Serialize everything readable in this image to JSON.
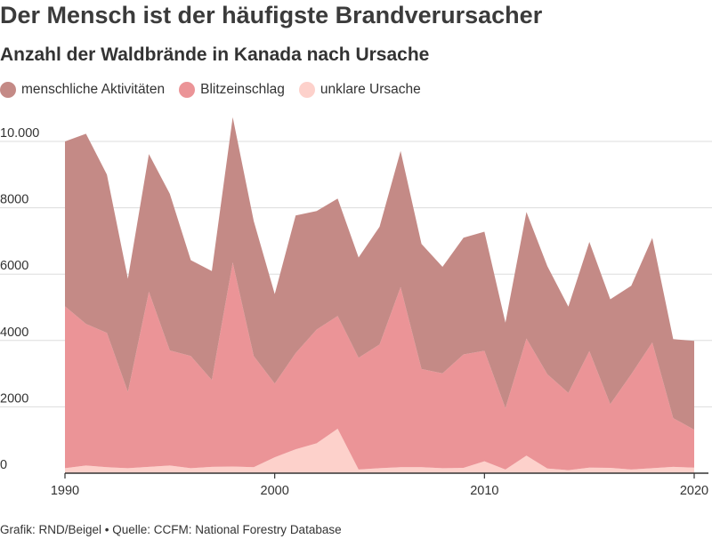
{
  "title": "Der Mensch ist der häufigste Brandverursacher",
  "subtitle": "Anzahl der Waldbrände in Kanada nach Ursache",
  "footer": "Grafik: RND/Beigel • Quelle: CCFM: National Forestry Database",
  "colors": {
    "menschlich": "#c48a86",
    "blitz": "#eb9497",
    "unklar": "#fdd1cb",
    "grid": "#dddddd",
    "axis": "#333333"
  },
  "chart_data": {
    "type": "area",
    "stacked": true,
    "title": "Der Mensch ist der häufigste Brandverursacher",
    "subtitle": "Anzahl der Waldbrände in Kanada nach Ursache",
    "xlabel": "",
    "ylabel": "",
    "ylim": [
      0,
      10000
    ],
    "xlim": [
      1990,
      2020
    ],
    "grid": true,
    "legend_position": "top-left",
    "y_ticks": [
      {
        "value": 0,
        "label": "0"
      },
      {
        "value": 2000,
        "label": "2000"
      },
      {
        "value": 4000,
        "label": "4000"
      },
      {
        "value": 6000,
        "label": "6000"
      },
      {
        "value": 8000,
        "label": "8000"
      },
      {
        "value": 10000,
        "label": "10.000"
      }
    ],
    "x_ticks": [
      1990,
      2000,
      2010,
      2020
    ],
    "x": [
      1990,
      1991,
      1992,
      1993,
      1994,
      1995,
      1996,
      1997,
      1998,
      1999,
      2000,
      2001,
      2002,
      2003,
      2004,
      2005,
      2006,
      2007,
      2008,
      2009,
      2010,
      2011,
      2012,
      2013,
      2014,
      2015,
      2016,
      2017,
      2018,
      2019,
      2020
    ],
    "series": [
      {
        "name": "unklare Ursache",
        "key": "unklar",
        "values": [
          150,
          230,
          180,
          150,
          190,
          230,
          150,
          190,
          200,
          180,
          480,
          720,
          900,
          1340,
          110,
          150,
          180,
          180,
          150,
          160,
          360,
          110,
          530,
          140,
          90,
          170,
          160,
          110,
          150,
          190,
          170
        ]
      },
      {
        "name": "Blitzeinschlag",
        "key": "blitz",
        "values": [
          4880,
          4270,
          4050,
          2300,
          5280,
          3470,
          3380,
          2620,
          6150,
          3350,
          2220,
          2900,
          3430,
          3400,
          3370,
          3730,
          5430,
          2960,
          2860,
          3420,
          3330,
          1850,
          3530,
          2840,
          2330,
          3510,
          1920,
          2870,
          3790,
          1470,
          1140
        ]
      },
      {
        "name": "menschliche Aktivitäten",
        "key": "menschlich",
        "values": [
          4970,
          5730,
          4770,
          3410,
          4150,
          4720,
          2890,
          3280,
          4380,
          4070,
          2700,
          4150,
          3570,
          3540,
          3020,
          3550,
          4100,
          3770,
          3210,
          3520,
          3590,
          2580,
          3810,
          3260,
          2600,
          3290,
          3160,
          2670,
          3150,
          2380,
          2680
        ]
      }
    ]
  },
  "legend": [
    {
      "label": "menschliche Aktivitäten",
      "key": "menschlich"
    },
    {
      "label": "Blitzeinschlag",
      "key": "blitz"
    },
    {
      "label": "unklare Ursache",
      "key": "unklar"
    }
  ]
}
